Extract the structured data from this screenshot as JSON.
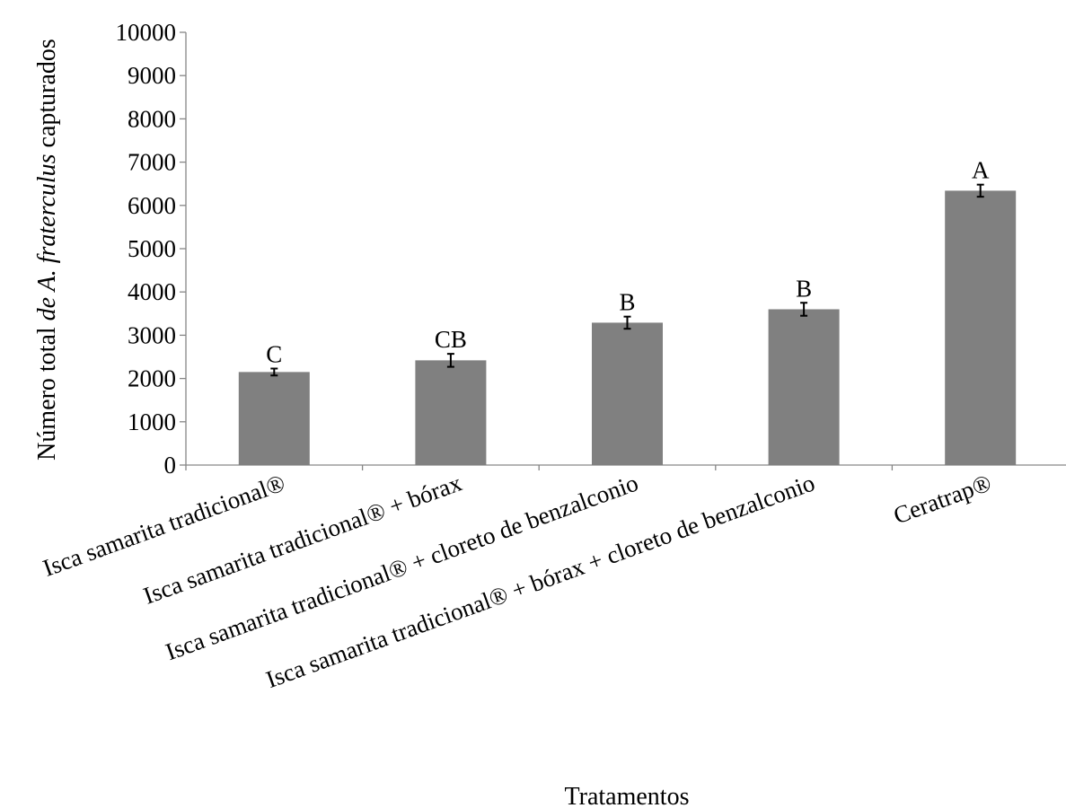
{
  "chart_data": {
    "type": "bar",
    "categories": [
      "Isca samarita tradicional®",
      "Isca samarita tradicional® + bórax",
      "Isca samarita tradicional® + cloreto de benzalconio",
      "Isca samarita tradicional® + bórax + cloreto de benzalconio",
      "Ceratrap®"
    ],
    "values": [
      2150,
      2420,
      3290,
      3600,
      6340
    ],
    "errors": [
      80,
      150,
      140,
      150,
      140
    ],
    "significance_letters": [
      "C",
      "CB",
      "B",
      "B",
      "A"
    ],
    "xlabel": "Tratamentos",
    "ylabel": {
      "before": "Número total ",
      "italic": "de A. fraterculus",
      "after": " capturados"
    },
    "ylim": [
      0,
      10000
    ],
    "yticks": [
      "0",
      "1000",
      "2000",
      "3000",
      "4000",
      "5000",
      "6000",
      "7000",
      "8000",
      "9000",
      "10000"
    ],
    "ytick_values": [
      0,
      1000,
      2000,
      3000,
      4000,
      5000,
      6000,
      7000,
      8000,
      9000,
      10000
    ],
    "grid": false,
    "legend": "none",
    "colors": {
      "bar": "#808080",
      "axis": "#868686",
      "text": "#000000"
    }
  }
}
